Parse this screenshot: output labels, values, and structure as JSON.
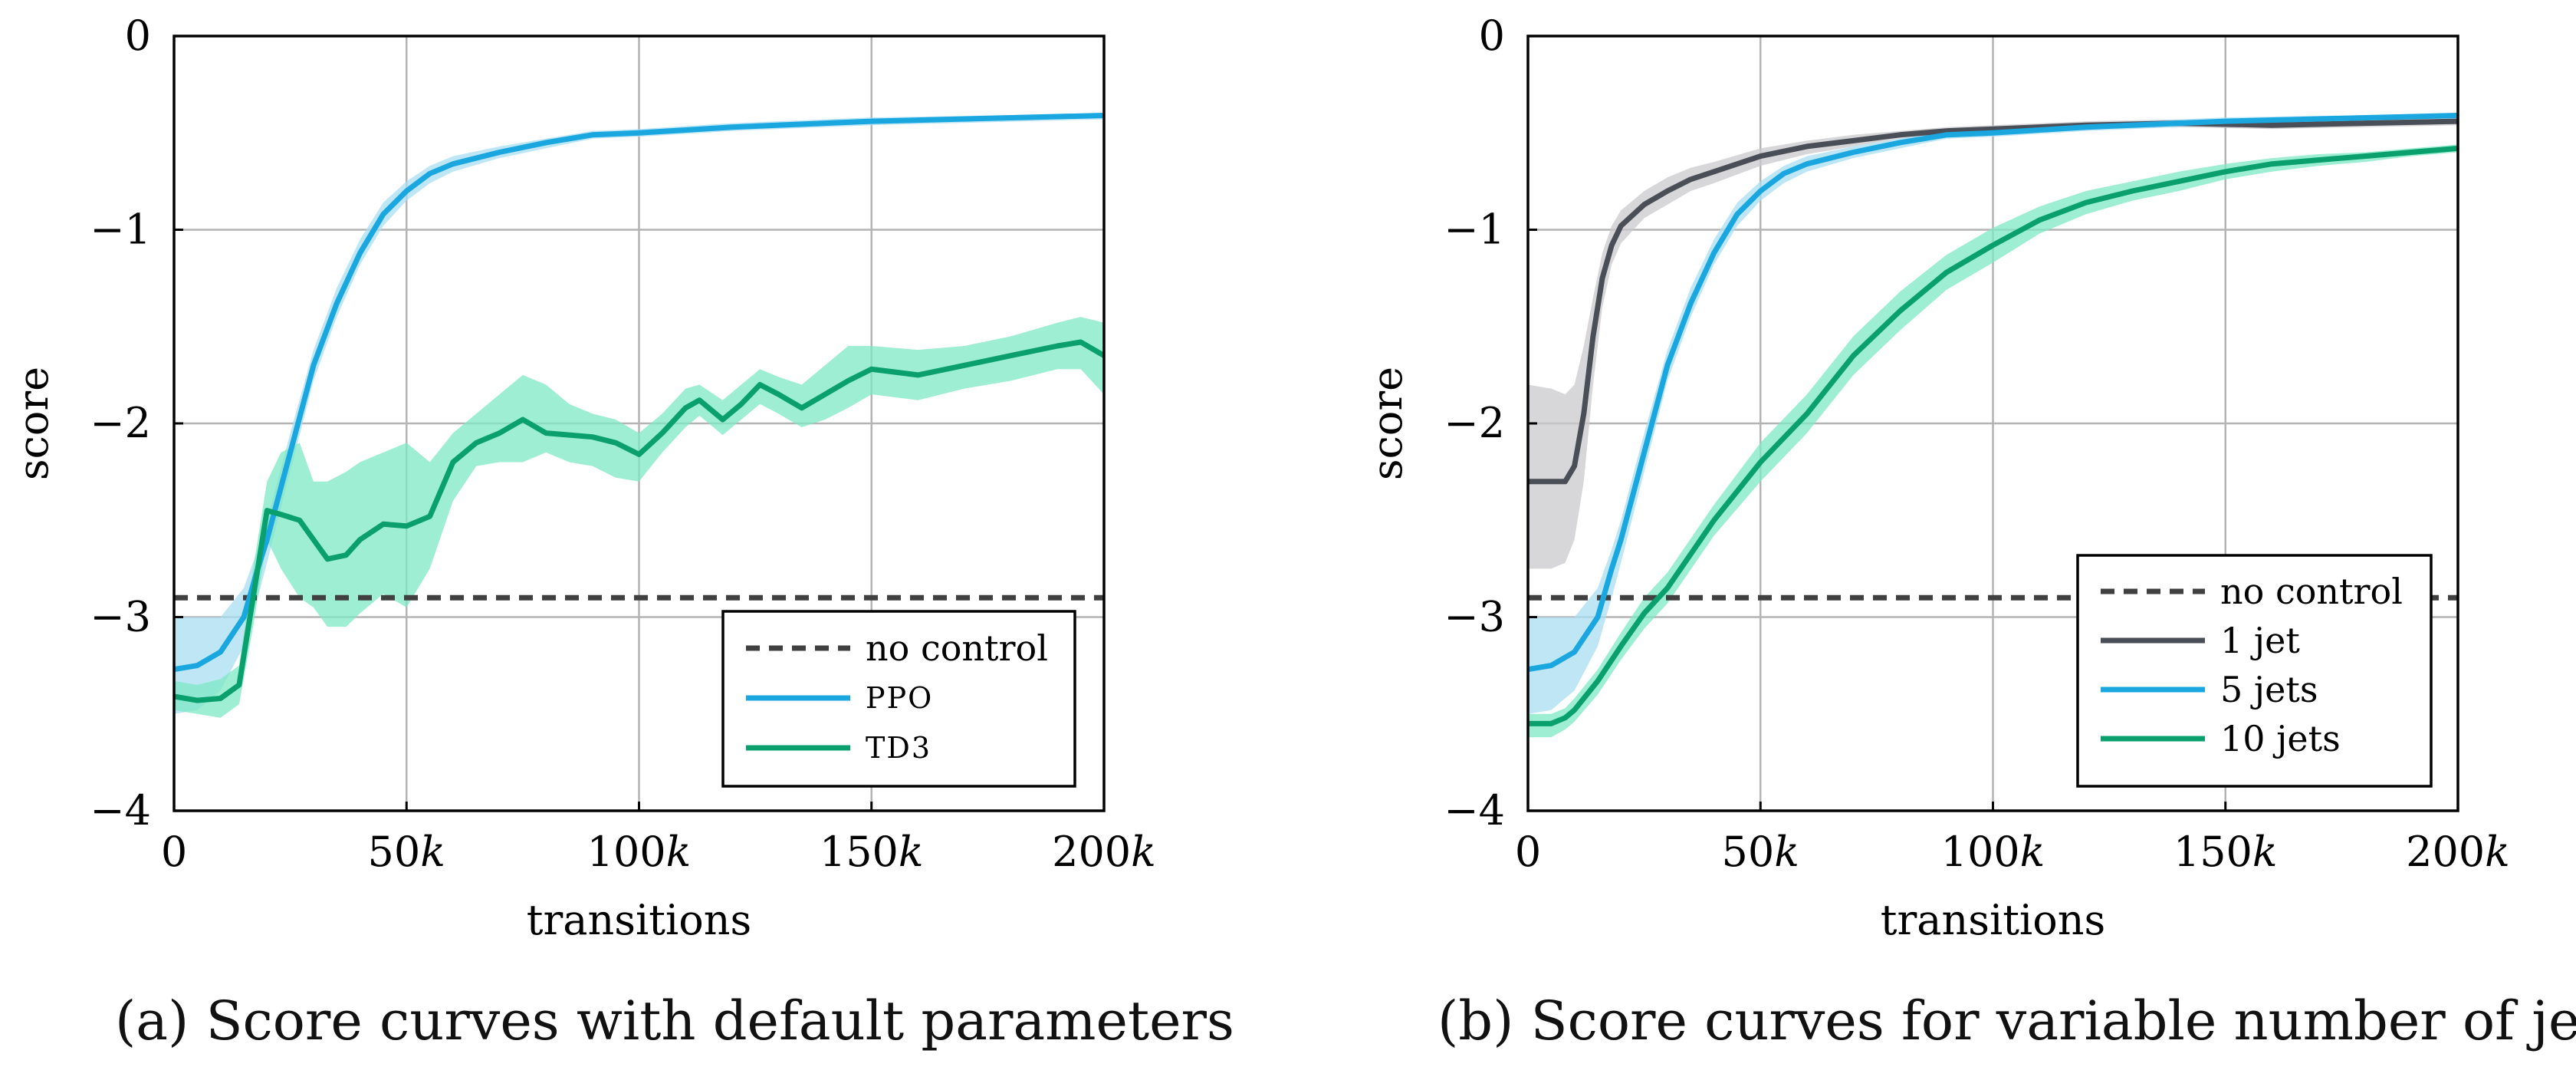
{
  "chart_data": [
    {
      "type": "line",
      "panel": "a",
      "caption": "(a) Score curves with default parameters",
      "xlabel": "transitions",
      "ylabel": "score",
      "xlim": [
        0,
        200
      ],
      "ylim": [
        -4,
        0
      ],
      "xticks": [
        0,
        50,
        100,
        150,
        200
      ],
      "xtick_labels": [
        "0",
        "50k",
        "100k",
        "150k",
        "200k"
      ],
      "yticks": [
        0,
        -1,
        -2,
        -3,
        -4
      ],
      "ytick_labels": [
        "0",
        "−1",
        "−2",
        "−3",
        "−4"
      ],
      "grid": true,
      "legend_position": "bottom-right",
      "series": [
        {
          "name": "no control",
          "color": "#404040",
          "style": "dashed",
          "x": [
            0,
            200
          ],
          "y": [
            -2.9,
            -2.9
          ]
        },
        {
          "name": "PPO",
          "color": "#1AA7E0",
          "style": "solid",
          "band_color": "#A8DDF2",
          "x": [
            0,
            5,
            10,
            15,
            18,
            20,
            25,
            30,
            35,
            40,
            45,
            50,
            55,
            60,
            70,
            80,
            90,
            100,
            120,
            150,
            200
          ],
          "y": [
            -3.27,
            -3.25,
            -3.18,
            -3.0,
            -2.75,
            -2.6,
            -2.15,
            -1.7,
            -1.38,
            -1.12,
            -0.92,
            -0.8,
            -0.71,
            -0.66,
            -0.6,
            -0.55,
            -0.51,
            -0.5,
            -0.47,
            -0.44,
            -0.41
          ],
          "band_upper": [
            -3.0,
            -3.0,
            -3.0,
            -2.85,
            -2.65,
            -2.5,
            -2.05,
            -1.62,
            -1.3,
            -1.05,
            -0.86,
            -0.75,
            -0.67,
            -0.62,
            -0.57,
            -0.53,
            -0.49,
            -0.48,
            -0.45,
            -0.42,
            -0.4
          ],
          "band_lower": [
            -3.5,
            -3.48,
            -3.38,
            -3.15,
            -2.9,
            -2.72,
            -2.25,
            -1.78,
            -1.45,
            -1.18,
            -0.98,
            -0.85,
            -0.76,
            -0.7,
            -0.63,
            -0.58,
            -0.53,
            -0.52,
            -0.49,
            -0.46,
            -0.43
          ]
        },
        {
          "name": "TD3",
          "color": "#0AA06E",
          "style": "solid",
          "band_color": "#7DE8C4",
          "x": [
            0,
            5,
            10,
            14,
            17,
            20,
            23,
            27,
            30,
            33,
            37,
            40,
            45,
            50,
            55,
            60,
            65,
            70,
            75,
            80,
            85,
            90,
            95,
            100,
            105,
            110,
            113,
            118,
            122,
            126,
            130,
            135,
            140,
            145,
            150,
            160,
            170,
            180,
            190,
            195,
            200
          ],
          "y": [
            -3.41,
            -3.43,
            -3.42,
            -3.35,
            -2.9,
            -2.45,
            -2.47,
            -2.5,
            -2.6,
            -2.7,
            -2.68,
            -2.6,
            -2.52,
            -2.53,
            -2.48,
            -2.2,
            -2.1,
            -2.05,
            -1.98,
            -2.05,
            -2.06,
            -2.07,
            -2.1,
            -2.16,
            -2.05,
            -1.92,
            -1.88,
            -1.98,
            -1.9,
            -1.8,
            -1.85,
            -1.92,
            -1.85,
            -1.78,
            -1.72,
            -1.75,
            -1.7,
            -1.65,
            -1.6,
            -1.58,
            -1.65
          ],
          "band_upper": [
            -3.33,
            -3.35,
            -3.32,
            -3.25,
            -2.75,
            -2.3,
            -2.15,
            -2.1,
            -2.3,
            -2.3,
            -2.25,
            -2.2,
            -2.15,
            -2.1,
            -2.2,
            -2.05,
            -1.95,
            -1.85,
            -1.75,
            -1.8,
            -1.9,
            -1.95,
            -1.98,
            -2.05,
            -1.95,
            -1.82,
            -1.8,
            -1.88,
            -1.8,
            -1.72,
            -1.76,
            -1.8,
            -1.7,
            -1.6,
            -1.6,
            -1.62,
            -1.6,
            -1.55,
            -1.48,
            -1.45,
            -1.48
          ],
          "band_lower": [
            -3.48,
            -3.5,
            -3.52,
            -3.45,
            -3.05,
            -2.6,
            -2.75,
            -2.9,
            -2.95,
            -3.05,
            -3.05,
            -2.98,
            -2.88,
            -2.95,
            -2.75,
            -2.4,
            -2.22,
            -2.2,
            -2.2,
            -2.15,
            -2.2,
            -2.22,
            -2.28,
            -2.3,
            -2.15,
            -2.02,
            -1.96,
            -2.06,
            -1.98,
            -1.9,
            -1.95,
            -2.02,
            -1.98,
            -1.92,
            -1.85,
            -1.88,
            -1.82,
            -1.78,
            -1.72,
            -1.72,
            -1.85
          ]
        }
      ]
    },
    {
      "type": "line",
      "panel": "b",
      "caption": "(b) Score curves for variable number of jets",
      "xlabel": "transitions",
      "ylabel": "score",
      "xlim": [
        0,
        200
      ],
      "ylim": [
        -4,
        0
      ],
      "xticks": [
        0,
        50,
        100,
        150,
        200
      ],
      "xtick_labels": [
        "0",
        "50k",
        "100k",
        "150k",
        "200k"
      ],
      "yticks": [
        0,
        -1,
        -2,
        -3,
        -4
      ],
      "ytick_labels": [
        "0",
        "−1",
        "−2",
        "−3",
        "−4"
      ],
      "grid": true,
      "legend_position": "bottom-right",
      "series": [
        {
          "name": "no control",
          "color": "#404040",
          "style": "dashed",
          "x": [
            0,
            200
          ],
          "y": [
            -2.9,
            -2.9
          ]
        },
        {
          "name": "1 jet",
          "color": "#4A4E57",
          "style": "solid",
          "band_color": "#C9CACC",
          "x": [
            0,
            5,
            8,
            10,
            12,
            14,
            16,
            18,
            20,
            25,
            30,
            35,
            40,
            50,
            60,
            70,
            80,
            90,
            100,
            120,
            140,
            160,
            180,
            200
          ],
          "y": [
            -2.3,
            -2.3,
            -2.3,
            -2.22,
            -1.95,
            -1.55,
            -1.25,
            -1.08,
            -0.98,
            -0.87,
            -0.8,
            -0.74,
            -0.7,
            -0.62,
            -0.57,
            -0.54,
            -0.51,
            -0.49,
            -0.48,
            -0.46,
            -0.45,
            -0.46,
            -0.45,
            -0.44
          ],
          "band_upper": [
            -1.8,
            -1.82,
            -1.85,
            -1.8,
            -1.6,
            -1.35,
            -1.12,
            -0.98,
            -0.9,
            -0.8,
            -0.73,
            -0.68,
            -0.65,
            -0.58,
            -0.54,
            -0.51,
            -0.49,
            -0.47,
            -0.46,
            -0.44,
            -0.43,
            -0.44,
            -0.43,
            -0.42
          ],
          "band_lower": [
            -2.75,
            -2.75,
            -2.72,
            -2.6,
            -2.3,
            -1.8,
            -1.4,
            -1.18,
            -1.07,
            -0.94,
            -0.87,
            -0.8,
            -0.76,
            -0.67,
            -0.61,
            -0.57,
            -0.53,
            -0.51,
            -0.5,
            -0.48,
            -0.47,
            -0.48,
            -0.47,
            -0.46
          ]
        },
        {
          "name": "5 jets",
          "color": "#1AA7E0",
          "style": "solid",
          "band_color": "#A8DDF2",
          "x": [
            0,
            5,
            10,
            15,
            18,
            20,
            25,
            30,
            35,
            40,
            45,
            50,
            55,
            60,
            70,
            80,
            90,
            100,
            120,
            150,
            200
          ],
          "y": [
            -3.27,
            -3.25,
            -3.18,
            -3.0,
            -2.75,
            -2.6,
            -2.15,
            -1.7,
            -1.38,
            -1.12,
            -0.92,
            -0.8,
            -0.71,
            -0.66,
            -0.6,
            -0.55,
            -0.51,
            -0.5,
            -0.47,
            -0.44,
            -0.41
          ],
          "band_upper": [
            -3.0,
            -3.0,
            -3.0,
            -2.85,
            -2.65,
            -2.5,
            -2.05,
            -1.62,
            -1.3,
            -1.05,
            -0.86,
            -0.75,
            -0.67,
            -0.62,
            -0.57,
            -0.53,
            -0.49,
            -0.48,
            -0.45,
            -0.42,
            -0.4
          ],
          "band_lower": [
            -3.5,
            -3.48,
            -3.38,
            -3.15,
            -2.9,
            -2.72,
            -2.25,
            -1.78,
            -1.45,
            -1.18,
            -0.98,
            -0.85,
            -0.76,
            -0.7,
            -0.63,
            -0.58,
            -0.53,
            -0.52,
            -0.49,
            -0.46,
            -0.43
          ]
        },
        {
          "name": "10 jets",
          "color": "#0AA06E",
          "style": "solid",
          "band_color": "#7DE8C4",
          "x": [
            0,
            5,
            8,
            10,
            15,
            20,
            25,
            30,
            40,
            50,
            60,
            70,
            80,
            90,
            100,
            110,
            120,
            130,
            140,
            150,
            160,
            170,
            180,
            190,
            200
          ],
          "y": [
            -3.55,
            -3.55,
            -3.52,
            -3.48,
            -3.33,
            -3.15,
            -2.98,
            -2.85,
            -2.5,
            -2.2,
            -1.95,
            -1.65,
            -1.42,
            -1.22,
            -1.08,
            -0.95,
            -0.86,
            -0.8,
            -0.75,
            -0.7,
            -0.66,
            -0.64,
            -0.62,
            -0.6,
            -0.58
          ],
          "band_upper": [
            -3.5,
            -3.5,
            -3.47,
            -3.42,
            -3.27,
            -3.08,
            -2.9,
            -2.77,
            -2.42,
            -2.1,
            -1.85,
            -1.55,
            -1.32,
            -1.13,
            -0.99,
            -0.88,
            -0.8,
            -0.75,
            -0.7,
            -0.66,
            -0.63,
            -0.61,
            -0.6,
            -0.58,
            -0.56
          ],
          "band_lower": [
            -3.62,
            -3.62,
            -3.58,
            -3.54,
            -3.4,
            -3.22,
            -3.06,
            -2.93,
            -2.58,
            -2.3,
            -2.05,
            -1.75,
            -1.52,
            -1.31,
            -1.17,
            -1.02,
            -0.92,
            -0.85,
            -0.8,
            -0.74,
            -0.7,
            -0.67,
            -0.65,
            -0.62,
            -0.6
          ]
        }
      ]
    }
  ]
}
